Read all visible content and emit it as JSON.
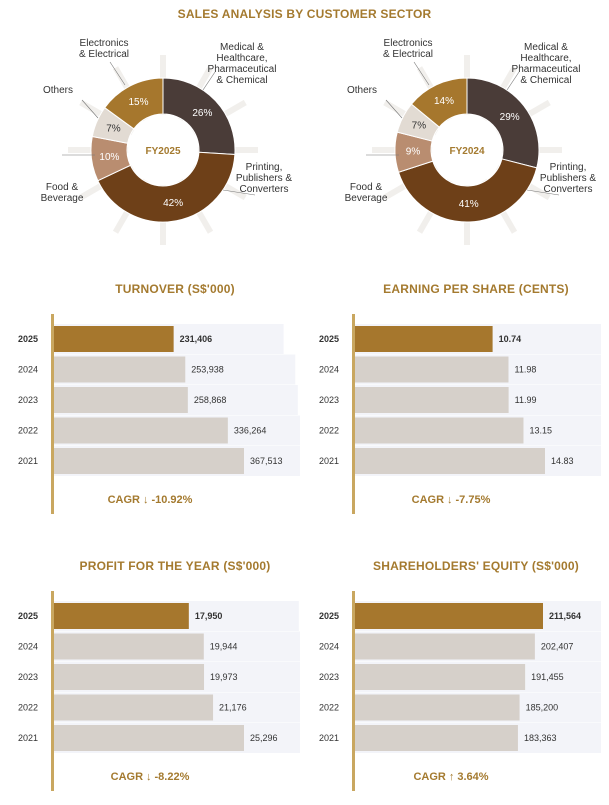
{
  "sales": {
    "title": "SALES ANALYSIS BY CUSTOMER SECTOR"
  },
  "chart_data": [
    {
      "type": "pie",
      "center_label": "FY2025",
      "categories": [
        "Medical &\nHealthcare,\nPharmaceutical\n& Chemical",
        "Printing,\nPublishers &\nConverters",
        "Food &\nBeverage",
        "Others",
        "Electronics\n& Electrical"
      ],
      "values": [
        26,
        42,
        10,
        7,
        15
      ],
      "labels": [
        "26%",
        "42%",
        "10%",
        "7%",
        "15%"
      ],
      "colors": [
        "#4a3c38",
        "#6e4018",
        "#b98d70",
        "#e2dbd3",
        "#a6772d"
      ]
    },
    {
      "type": "pie",
      "center_label": "FY2024",
      "categories": [
        "Medical &\nHealthcare,\nPharmaceutical\n& Chemical",
        "Printing,\nPublishers &\nConverters",
        "Food &\nBeverage",
        "Others",
        "Electronics\n& Electrical"
      ],
      "values": [
        29,
        41,
        9,
        7,
        14
      ],
      "labels": [
        "29%",
        "41%",
        "9%",
        "7%",
        "14%"
      ],
      "colors": [
        "#4a3c38",
        "#6e4018",
        "#b98d70",
        "#e2dbd3",
        "#a6772d"
      ]
    },
    {
      "type": "bar",
      "title": "TURNOVER (S$'000)",
      "categories": [
        "2025",
        "2024",
        "2023",
        "2022",
        "2021"
      ],
      "values": [
        231406,
        253938,
        258868,
        336264,
        367513
      ],
      "labels": [
        "231,406",
        "253,938",
        "258,868",
        "336,264",
        "367,513"
      ],
      "cagr_label": "CAGR",
      "cagr": "-10.92%",
      "direction": "down"
    },
    {
      "type": "bar",
      "title": "EARNING PER SHARE (CENTS)",
      "categories": [
        "2025",
        "2024",
        "2023",
        "2022",
        "2021"
      ],
      "values": [
        10.74,
        11.98,
        11.99,
        13.15,
        14.83
      ],
      "labels": [
        "10.74",
        "11.98",
        "11.99",
        "13.15",
        "14.83"
      ],
      "cagr_label": "CAGR",
      "cagr": "-7.75%",
      "direction": "down"
    },
    {
      "type": "bar",
      "title": "PROFIT FOR THE YEAR (S$'000)",
      "categories": [
        "2025",
        "2024",
        "2023",
        "2022",
        "2021"
      ],
      "values": [
        17950,
        19944,
        19973,
        21176,
        25296
      ],
      "labels": [
        "17,950",
        "19,944",
        "19,973",
        "21,176",
        "25,296"
      ],
      "cagr_label": "CAGR",
      "cagr": "-8.22%",
      "direction": "down"
    },
    {
      "type": "bar",
      "title": "SHAREHOLDERS' EQUITY (S$'000)",
      "categories": [
        "2025",
        "2024",
        "2023",
        "2022",
        "2021"
      ],
      "values": [
        211564,
        202407,
        191455,
        185200,
        183363
      ],
      "labels": [
        "211,564",
        "202,407",
        "191,455",
        "185,200",
        "183,363"
      ],
      "cagr_label": "CAGR",
      "cagr": "3.64%",
      "direction": "up"
    }
  ],
  "colors": {
    "gold": "#a47a2f",
    "bar_current": "#a6772d",
    "bar_past": "#d6d0ca",
    "axis": "#c9a760"
  }
}
